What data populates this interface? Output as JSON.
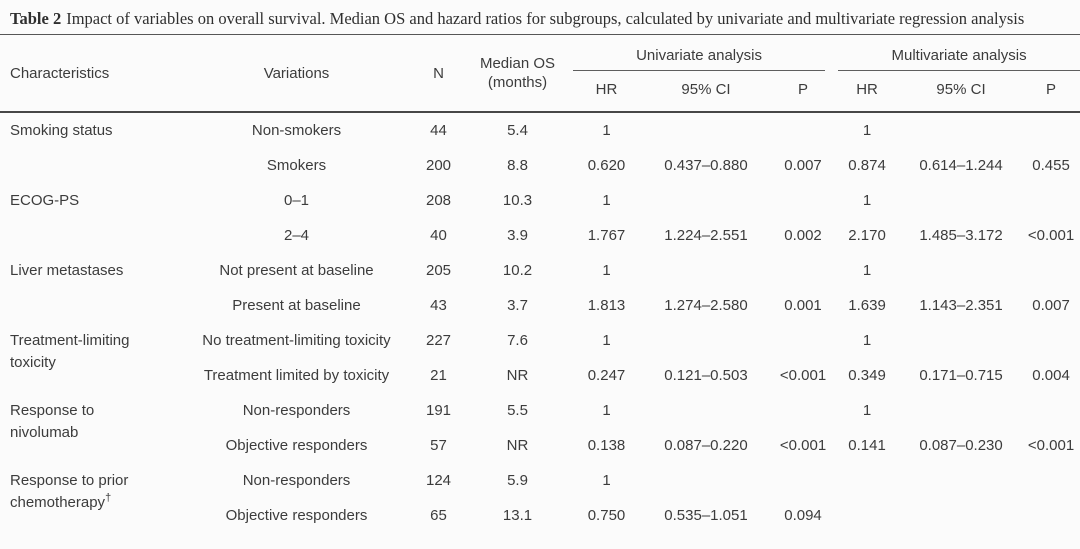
{
  "caption": {
    "label": "Table 2",
    "text": "Impact of variables on overall survival. Median OS and hazard ratios for subgroups, calculated by univariate and multivariate regression analysis"
  },
  "header": {
    "characteristics": "Characteristics",
    "variations": "Variations",
    "n": "N",
    "median_os_line1": "Median OS",
    "median_os_line2": "(months)",
    "univariate": "Univariate analysis",
    "multivariate": "Multivariate analysis",
    "hr": "HR",
    "ci95": "95% CI",
    "p": "P"
  },
  "chart_data": {
    "type": "table",
    "title": "Table 2 Impact of variables on overall survival",
    "columns": [
      "Characteristics",
      "Variations",
      "N",
      "Median OS (months)",
      "Univariate HR",
      "Univariate 95% CI",
      "Univariate P",
      "Multivariate HR",
      "Multivariate 95% CI",
      "Multivariate P"
    ]
  },
  "table": {
    "groups": [
      {
        "characteristic": "Smoking status",
        "rows": [
          {
            "variation": "Non-smokers",
            "n": "44",
            "median_os": "5.4",
            "uni_hr": "1",
            "uni_ci": "",
            "uni_p": "",
            "multi_hr": "1",
            "multi_ci": "",
            "multi_p": ""
          },
          {
            "variation": "Smokers",
            "n": "200",
            "median_os": "8.8",
            "uni_hr": "0.620",
            "uni_ci": "0.437–0.880",
            "uni_p": "0.007",
            "multi_hr": "0.874",
            "multi_ci": "0.614–1.244",
            "multi_p": "0.455"
          }
        ]
      },
      {
        "characteristic": "ECOG-PS",
        "rows": [
          {
            "variation": "0–1",
            "n": "208",
            "median_os": "10.3",
            "uni_hr": "1",
            "uni_ci": "",
            "uni_p": "",
            "multi_hr": "1",
            "multi_ci": "",
            "multi_p": ""
          },
          {
            "variation": "2–4",
            "n": "40",
            "median_os": "3.9",
            "uni_hr": "1.767",
            "uni_ci": "1.224–2.551",
            "uni_p": "0.002",
            "multi_hr": "2.170",
            "multi_ci": "1.485–3.172",
            "multi_p": "<0.001"
          }
        ]
      },
      {
        "characteristic": "Liver metastases",
        "rows": [
          {
            "variation": "Not present at baseline",
            "n": "205",
            "median_os": "10.2",
            "uni_hr": "1",
            "uni_ci": "",
            "uni_p": "",
            "multi_hr": "1",
            "multi_ci": "",
            "multi_p": ""
          },
          {
            "variation": "Present at baseline",
            "n": "43",
            "median_os": "3.7",
            "uni_hr": "1.813",
            "uni_ci": "1.274–2.580",
            "uni_p": "0.001",
            "multi_hr": "1.639",
            "multi_ci": "1.143–2.351",
            "multi_p": "0.007"
          }
        ]
      },
      {
        "characteristic": "Treatment-limiting toxicity",
        "rows": [
          {
            "variation": "No treatment-limiting toxicity",
            "n": "227",
            "median_os": "7.6",
            "uni_hr": "1",
            "uni_ci": "",
            "uni_p": "",
            "multi_hr": "1",
            "multi_ci": "",
            "multi_p": ""
          },
          {
            "variation": "Treatment limited by toxicity",
            "n": "21",
            "median_os": "NR",
            "uni_hr": "0.247",
            "uni_ci": "0.121–0.503",
            "uni_p": "<0.001",
            "multi_hr": "0.349",
            "multi_ci": "0.171–0.715",
            "multi_p": "0.004"
          }
        ]
      },
      {
        "characteristic": "Response to nivolumab",
        "rows": [
          {
            "variation": "Non-responders",
            "n": "191",
            "median_os": "5.5",
            "uni_hr": "1",
            "uni_ci": "",
            "uni_p": "",
            "multi_hr": "1",
            "multi_ci": "",
            "multi_p": ""
          },
          {
            "variation": "Objective responders",
            "n": "57",
            "median_os": "NR",
            "uni_hr": "0.138",
            "uni_ci": "0.087–0.220",
            "uni_p": "<0.001",
            "multi_hr": "0.141",
            "multi_ci": "0.087–0.230",
            "multi_p": "<0.001"
          }
        ]
      },
      {
        "characteristic": "Response to prior chemotherapy",
        "characteristic_sup": "†",
        "rows": [
          {
            "variation": "Non-responders",
            "n": "124",
            "median_os": "5.9",
            "uni_hr": "1",
            "uni_ci": "",
            "uni_p": "",
            "multi_hr": "",
            "multi_ci": "",
            "multi_p": ""
          },
          {
            "variation": "Objective responders",
            "n": "65",
            "median_os": "13.1",
            "uni_hr": "0.750",
            "uni_ci": "0.535–1.051",
            "uni_p": "0.094",
            "multi_hr": "",
            "multi_ci": "",
            "multi_p": ""
          }
        ]
      }
    ]
  }
}
